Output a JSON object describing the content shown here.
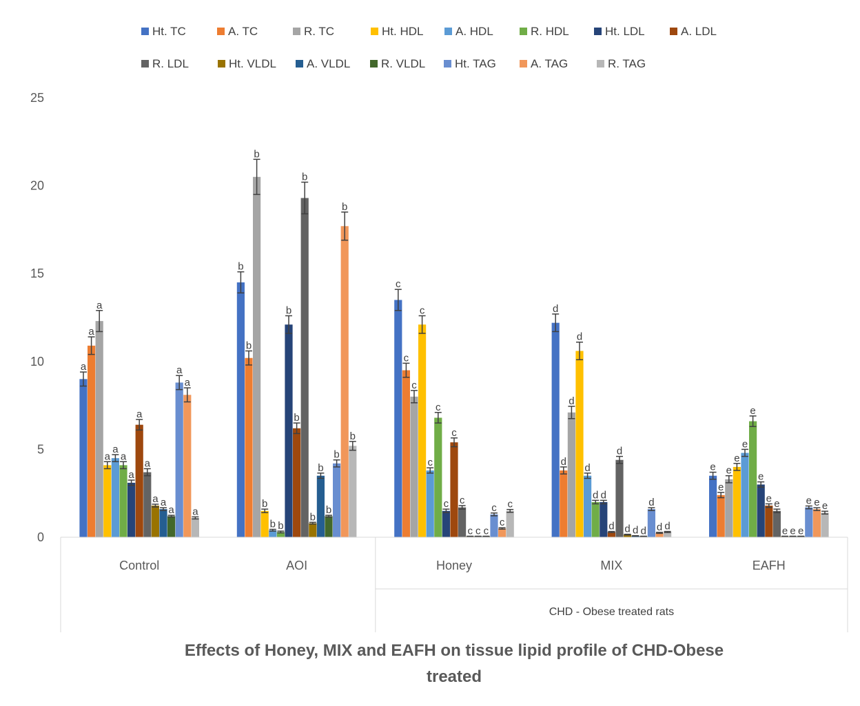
{
  "chart_data": {
    "type": "bar",
    "title_lines": [
      "Effects of Honey, MIX and EAFH on tissue lipid profile of CHD-Obese",
      "treated"
    ],
    "xlabel": "",
    "ylabel": "",
    "ylim": [
      0,
      25
    ],
    "yticks": [
      "0",
      "5",
      "10",
      "15",
      "20",
      "25"
    ],
    "grid": false,
    "legend_position": "top",
    "categories": [
      "Control",
      "AOI",
      "Honey",
      "MIX",
      "EAFH"
    ],
    "group_label": "CHD - Obese treated rats",
    "group_label_categories": [
      "Honey",
      "MIX",
      "EAFH"
    ],
    "series": [
      {
        "name": "Ht. TC",
        "color": "#4472C4",
        "values": [
          9.0,
          14.5,
          13.5,
          12.2,
          3.5
        ],
        "errors": [
          0.4,
          0.6,
          0.6,
          0.5,
          0.2
        ],
        "labels": [
          "a",
          "b",
          "c",
          "d",
          "e"
        ]
      },
      {
        "name": "A. TC",
        "color": "#ED7D31",
        "values": [
          10.9,
          10.2,
          9.5,
          3.8,
          2.4
        ],
        "errors": [
          0.5,
          0.4,
          0.4,
          0.2,
          0.15
        ],
        "labels": [
          "a",
          "b",
          "c",
          "d",
          "e"
        ]
      },
      {
        "name": "R. TC",
        "color": "#A5A5A5",
        "values": [
          12.3,
          20.5,
          8.0,
          7.1,
          3.3
        ],
        "errors": [
          0.6,
          1.0,
          0.35,
          0.35,
          0.2
        ],
        "labels": [
          "a",
          "b",
          "c",
          "d",
          "e"
        ]
      },
      {
        "name": "Ht. HDL",
        "color": "#FFC000",
        "values": [
          4.1,
          1.5,
          12.1,
          10.6,
          4.0
        ],
        "errors": [
          0.2,
          0.1,
          0.5,
          0.5,
          0.2
        ],
        "labels": [
          "a",
          "b",
          "c",
          "d",
          "e"
        ]
      },
      {
        "name": "A. HDL",
        "color": "#5B9BD5",
        "values": [
          4.5,
          0.4,
          3.8,
          3.5,
          4.8
        ],
        "errors": [
          0.2,
          0.05,
          0.15,
          0.15,
          0.2
        ],
        "labels": [
          "a",
          "b",
          "c",
          "d",
          "e"
        ]
      },
      {
        "name": "R. HDL",
        "color": "#70AD47",
        "values": [
          4.1,
          0.3,
          6.8,
          2.0,
          6.6
        ],
        "errors": [
          0.2,
          0.05,
          0.3,
          0.1,
          0.3
        ],
        "labels": [
          "a",
          "b",
          "c",
          "d",
          "e"
        ]
      },
      {
        "name": "Ht. LDL",
        "color": "#264478",
        "values": [
          3.1,
          12.1,
          1.5,
          2.0,
          3.0
        ],
        "errors": [
          0.15,
          0.5,
          0.1,
          0.1,
          0.15
        ],
        "labels": [
          "a",
          "b",
          "c",
          "d",
          "e"
        ]
      },
      {
        "name": "A. LDL",
        "color": "#9E480E",
        "values": [
          6.4,
          6.2,
          5.4,
          0.3,
          1.8
        ],
        "errors": [
          0.3,
          0.3,
          0.25,
          0.03,
          0.1
        ],
        "labels": [
          "a",
          "b",
          "c",
          "d",
          "e"
        ]
      },
      {
        "name": "R. LDL",
        "color": "#636363",
        "values": [
          3.7,
          19.3,
          1.7,
          4.4,
          1.5
        ],
        "errors": [
          0.2,
          0.9,
          0.1,
          0.2,
          0.1
        ],
        "labels": [
          "a",
          "b",
          "c",
          "d",
          "e"
        ]
      },
      {
        "name": "Ht. VLDL",
        "color": "#997300",
        "values": [
          1.8,
          0.8,
          0.05,
          0.15,
          0.05
        ],
        "errors": [
          0.08,
          0.05,
          0.01,
          0.02,
          0.01
        ],
        "labels": [
          "a",
          "b",
          "c",
          "d",
          "e"
        ]
      },
      {
        "name": "A. VLDL",
        "color": "#255E91",
        "values": [
          1.6,
          3.5,
          0.05,
          0.08,
          0.05
        ],
        "errors": [
          0.08,
          0.15,
          0.01,
          0.01,
          0.01
        ],
        "labels": [
          "a",
          "b",
          "c",
          "d",
          "e"
        ]
      },
      {
        "name": "R. VLDL",
        "color": "#43682B",
        "values": [
          1.2,
          1.2,
          0.05,
          0.05,
          0.05
        ],
        "errors": [
          0.05,
          0.05,
          0.01,
          0.01,
          0.01
        ],
        "labels": [
          "a",
          "b",
          "c",
          "d",
          "e"
        ]
      },
      {
        "name": "Ht. TAG",
        "color": "#698ED0",
        "values": [
          8.8,
          4.2,
          1.3,
          1.6,
          1.7
        ],
        "errors": [
          0.4,
          0.2,
          0.08,
          0.08,
          0.08
        ],
        "labels": [
          "a",
          "b",
          "c",
          "d",
          "e"
        ]
      },
      {
        "name": "A. TAG",
        "color": "#F1975A",
        "values": [
          8.1,
          17.7,
          0.5,
          0.25,
          1.6
        ],
        "errors": [
          0.4,
          0.8,
          0.04,
          0.03,
          0.08
        ],
        "labels": [
          "a",
          "b",
          "c",
          "d",
          "e"
        ]
      },
      {
        "name": "R. TAG",
        "color": "#B7B7B7",
        "values": [
          1.1,
          5.2,
          1.5,
          0.3,
          1.4
        ],
        "errors": [
          0.06,
          0.25,
          0.08,
          0.03,
          0.08
        ],
        "labels": [
          "a",
          "b",
          "c",
          "d",
          "e"
        ]
      }
    ]
  }
}
